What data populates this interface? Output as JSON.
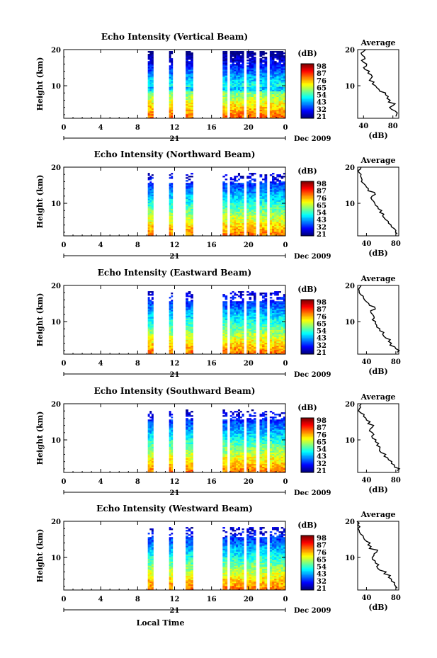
{
  "chart_data": [
    {
      "type": "heatmap",
      "title": "Echo Intensity (Vertical Beam)",
      "xlabel": "",
      "ylabel": "Height (km)",
      "xlim": [
        0,
        24
      ],
      "ylim": [
        1,
        20
      ],
      "x_ticks": [
        "0",
        "4",
        "8",
        "12",
        "16",
        "20",
        "0"
      ],
      "y_ticks": [
        "20",
        "10"
      ],
      "date_label": "21",
      "date_suffix": "Dec 2009",
      "colorbar_label": "(dB)",
      "colorbar_ticks": [
        "98",
        "87",
        "76",
        "65",
        "54",
        "43",
        "32",
        "21"
      ],
      "data_intervals_hours": [
        [
          9.1,
          9.7
        ],
        [
          11.4,
          11.8
        ],
        [
          13.2,
          14.0
        ],
        [
          17.2,
          17.7
        ],
        [
          18.0,
          19.5
        ],
        [
          19.8,
          20.8
        ],
        [
          21.2,
          22.0
        ],
        [
          22.3,
          24.0
        ]
      ],
      "profile": {
        "title": "Average",
        "xlabel": "(dB)",
        "x_ticks": [
          "40",
          "80"
        ],
        "y_ticks": [
          "20",
          "10"
        ],
        "xlim": [
          32,
          88
        ],
        "points": [
          [
            84,
            1.5
          ],
          [
            86,
            2.5
          ],
          [
            78,
            3.5
          ],
          [
            80,
            4.5
          ],
          [
            74,
            5.5
          ],
          [
            72,
            6.5
          ],
          [
            70,
            7.5
          ],
          [
            62,
            8.5
          ],
          [
            58,
            9.5
          ],
          [
            52,
            10.5
          ],
          [
            48,
            11.5
          ],
          [
            52,
            12.5
          ],
          [
            46,
            13.5
          ],
          [
            42,
            14.5
          ],
          [
            44,
            15.5
          ],
          [
            40,
            16.5
          ],
          [
            42,
            17.5
          ],
          [
            38,
            18.5
          ],
          [
            40,
            19.5
          ]
        ]
      }
    },
    {
      "type": "heatmap",
      "title": "Echo Intensity (Northward Beam)",
      "xlabel": "",
      "ylabel": "Height (km)",
      "xlim": [
        0,
        24
      ],
      "ylim": [
        1,
        20
      ],
      "x_ticks": [
        "0",
        "4",
        "8",
        "12",
        "16",
        "20",
        "0"
      ],
      "y_ticks": [
        "20",
        "10"
      ],
      "date_label": "21",
      "date_suffix": "Dec 2009",
      "colorbar_label": "(dB)",
      "colorbar_ticks": [
        "98",
        "87",
        "76",
        "65",
        "54",
        "43",
        "32",
        "21"
      ],
      "data_intervals_hours": [
        [
          9.1,
          9.7
        ],
        [
          11.4,
          11.8
        ],
        [
          13.2,
          14.0
        ],
        [
          17.2,
          17.7
        ],
        [
          18.0,
          19.5
        ],
        [
          19.8,
          20.8
        ],
        [
          21.2,
          22.0
        ],
        [
          22.3,
          24.0
        ]
      ],
      "profile": {
        "title": "Average",
        "xlabel": "(dB)",
        "x_ticks": [
          "40",
          "80"
        ],
        "y_ticks": [
          "20",
          "10"
        ],
        "xlim": [
          28,
          84
        ],
        "points": [
          [
            82,
            1.5
          ],
          [
            80,
            2.5
          ],
          [
            74,
            3.5
          ],
          [
            70,
            4.5
          ],
          [
            66,
            5.5
          ],
          [
            62,
            6.5
          ],
          [
            58,
            7.5
          ],
          [
            56,
            8.5
          ],
          [
            52,
            9.5
          ],
          [
            50,
            10.5
          ],
          [
            46,
            11.5
          ],
          [
            52,
            12.5
          ],
          [
            42,
            13.5
          ],
          [
            40,
            14.5
          ],
          [
            36,
            15.5
          ],
          [
            34,
            16.5
          ],
          [
            32,
            17.5
          ],
          [
            30,
            18.5
          ],
          [
            32,
            19.5
          ]
        ]
      }
    },
    {
      "type": "heatmap",
      "title": "Echo Intensity (Eastward Beam)",
      "xlabel": "",
      "ylabel": "Height (km)",
      "xlim": [
        0,
        24
      ],
      "ylim": [
        1,
        20
      ],
      "x_ticks": [
        "0",
        "4",
        "8",
        "12",
        "16",
        "20",
        "0"
      ],
      "y_ticks": [
        "20",
        "10"
      ],
      "date_label": "21",
      "date_suffix": "Dec 2009",
      "colorbar_label": "(dB)",
      "colorbar_ticks": [
        "98",
        "87",
        "76",
        "65",
        "54",
        "43",
        "32",
        "21"
      ],
      "data_intervals_hours": [
        [
          9.1,
          9.7
        ],
        [
          11.4,
          11.8
        ],
        [
          13.2,
          14.0
        ],
        [
          17.2,
          17.7
        ],
        [
          18.0,
          19.5
        ],
        [
          19.8,
          20.8
        ],
        [
          21.2,
          22.0
        ],
        [
          22.3,
          24.0
        ]
      ],
      "profile": {
        "title": "Average",
        "xlabel": "(dB)",
        "x_ticks": [
          "40",
          "80"
        ],
        "y_ticks": [
          "20",
          "10"
        ],
        "xlim": [
          28,
          84
        ],
        "points": [
          [
            82,
            1.5
          ],
          [
            80,
            2.5
          ],
          [
            72,
            3.5
          ],
          [
            70,
            4.5
          ],
          [
            66,
            5.5
          ],
          [
            62,
            6.5
          ],
          [
            58,
            7.5
          ],
          [
            54,
            8.5
          ],
          [
            52,
            9.5
          ],
          [
            48,
            10.5
          ],
          [
            50,
            11.5
          ],
          [
            46,
            12.5
          ],
          [
            52,
            13.5
          ],
          [
            44,
            14.5
          ],
          [
            40,
            15.5
          ],
          [
            36,
            16.5
          ],
          [
            32,
            17.5
          ],
          [
            30,
            18.5
          ],
          [
            31,
            19.5
          ]
        ]
      }
    },
    {
      "type": "heatmap",
      "title": "Echo Intensity (Southward Beam)",
      "xlabel": "",
      "ylabel": "Height (km)",
      "xlim": [
        0,
        24
      ],
      "ylim": [
        1,
        20
      ],
      "x_ticks": [
        "0",
        "4",
        "8",
        "12",
        "16",
        "20",
        "0"
      ],
      "y_ticks": [
        "20",
        "10"
      ],
      "date_label": "21",
      "date_suffix": "Dec 2009",
      "colorbar_label": "(dB)",
      "colorbar_ticks": [
        "98",
        "87",
        "76",
        "65",
        "54",
        "43",
        "32",
        "21"
      ],
      "data_intervals_hours": [
        [
          9.1,
          9.7
        ],
        [
          11.4,
          11.8
        ],
        [
          13.2,
          14.0
        ],
        [
          17.2,
          17.7
        ],
        [
          18.0,
          19.5
        ],
        [
          19.8,
          20.8
        ],
        [
          21.2,
          22.0
        ],
        [
          22.3,
          24.0
        ]
      ],
      "profile": {
        "title": "Average",
        "xlabel": "(dB)",
        "x_ticks": [
          "40",
          "80"
        ],
        "y_ticks": [
          "20",
          "10"
        ],
        "xlim": [
          28,
          84
        ],
        "points": [
          [
            82,
            1.5
          ],
          [
            78,
            2.5
          ],
          [
            74,
            3.5
          ],
          [
            70,
            4.5
          ],
          [
            64,
            5.5
          ],
          [
            60,
            6.5
          ],
          [
            58,
            7.5
          ],
          [
            54,
            8.5
          ],
          [
            52,
            9.5
          ],
          [
            48,
            10.5
          ],
          [
            50,
            11.5
          ],
          [
            44,
            12.5
          ],
          [
            48,
            13.5
          ],
          [
            42,
            14.5
          ],
          [
            40,
            15.5
          ],
          [
            36,
            16.5
          ],
          [
            32,
            17.5
          ],
          [
            30,
            18.5
          ],
          [
            31,
            19.5
          ]
        ]
      }
    },
    {
      "type": "heatmap",
      "title": "Echo Intensity (Westward Beam)",
      "xlabel": "Local Time",
      "ylabel": "Height (km)",
      "xlim": [
        0,
        24
      ],
      "ylim": [
        1,
        20
      ],
      "x_ticks": [
        "0",
        "4",
        "8",
        "12",
        "16",
        "20",
        "0"
      ],
      "y_ticks": [
        "20",
        "10"
      ],
      "date_label": "21",
      "date_suffix": "Dec 2009",
      "colorbar_label": "(dB)",
      "colorbar_ticks": [
        "98",
        "87",
        "76",
        "65",
        "54",
        "43",
        "32",
        "21"
      ],
      "data_intervals_hours": [
        [
          9.1,
          9.7
        ],
        [
          11.4,
          11.8
        ],
        [
          13.2,
          14.0
        ],
        [
          17.2,
          17.7
        ],
        [
          18.0,
          19.5
        ],
        [
          19.8,
          20.8
        ],
        [
          21.2,
          22.0
        ],
        [
          22.3,
          24.0
        ]
      ],
      "profile": {
        "title": "Average",
        "xlabel": "(dB)",
        "x_ticks": [
          "40",
          "80"
        ],
        "y_ticks": [
          "20",
          "10"
        ],
        "xlim": [
          28,
          84
        ],
        "points": [
          [
            82,
            1.5
          ],
          [
            78,
            2.5
          ],
          [
            74,
            3.5
          ],
          [
            70,
            4.5
          ],
          [
            64,
            5.5
          ],
          [
            58,
            6.5
          ],
          [
            54,
            7.5
          ],
          [
            52,
            8.5
          ],
          [
            48,
            9.5
          ],
          [
            50,
            10.5
          ],
          [
            54,
            11.5
          ],
          [
            44,
            12.5
          ],
          [
            42,
            13.5
          ],
          [
            40,
            14.5
          ],
          [
            36,
            15.5
          ],
          [
            32,
            16.5
          ],
          [
            30,
            17.5
          ],
          [
            31,
            18.5
          ],
          [
            30,
            19.5
          ]
        ]
      }
    }
  ]
}
